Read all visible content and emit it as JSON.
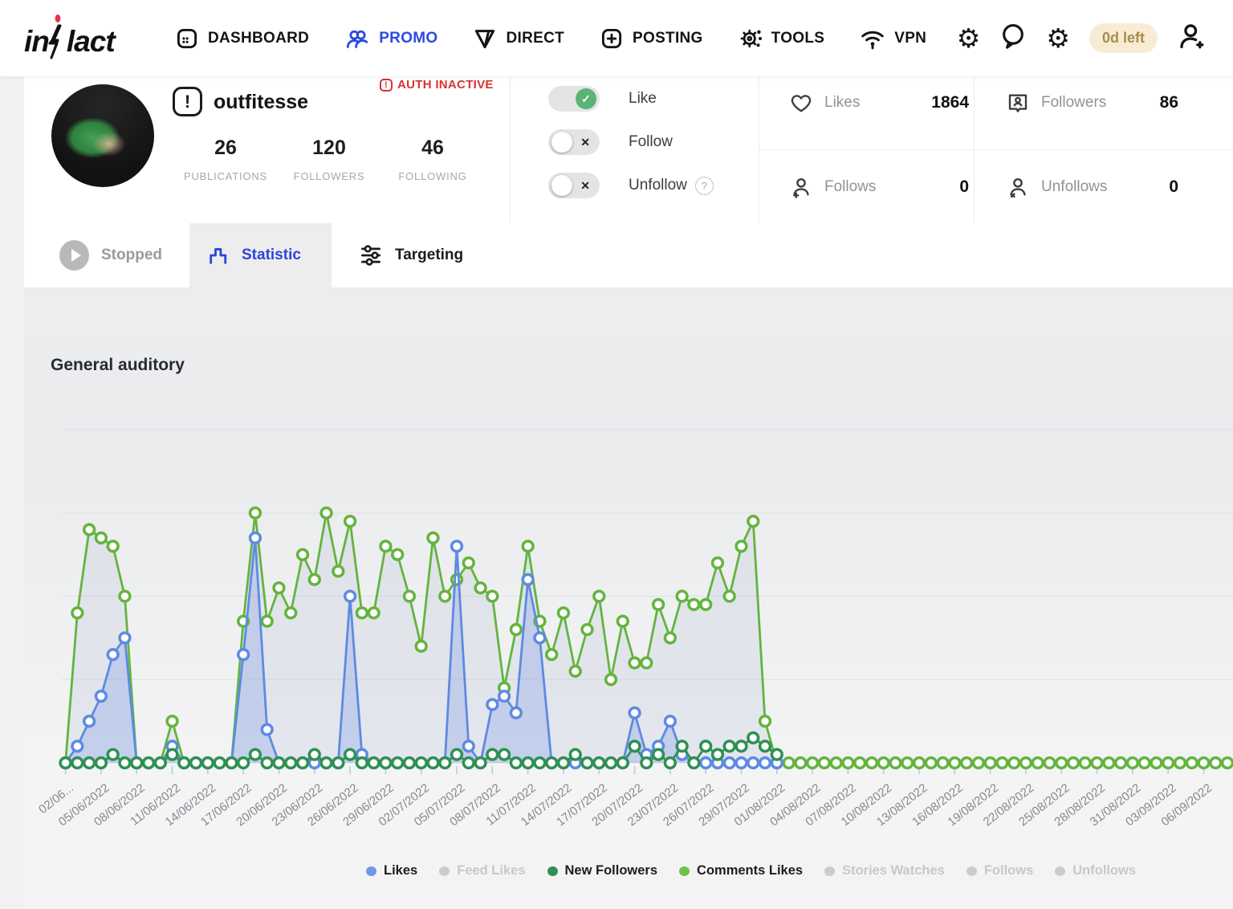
{
  "header": {
    "brand": "inflact",
    "brand_left": "in",
    "brand_right": "lact",
    "nav": [
      {
        "label": "DASHBOARD",
        "icon": "grid-icon",
        "active": false
      },
      {
        "label": "PROMO",
        "icon": "users-icon",
        "active": true
      },
      {
        "label": "DIRECT",
        "icon": "send-icon",
        "active": false
      },
      {
        "label": "POSTING",
        "icon": "plus-square-icon",
        "active": false
      },
      {
        "label": "TOOLS",
        "icon": "gear-nodes-icon",
        "active": false
      },
      {
        "label": "VPN",
        "icon": "wifi-icon",
        "active": false
      }
    ],
    "trial_badge": "0d left",
    "right_icons": [
      "settings-gear-icon",
      "chat-icon",
      "gear-play-icon",
      "add-user-icon"
    ]
  },
  "profile": {
    "username": "outfitesse",
    "auth_status": "AUTH INACTIVE",
    "stats": [
      {
        "value": "26",
        "label": "PUBLICATIONS"
      },
      {
        "value": "120",
        "label": "FOLLOWERS"
      },
      {
        "value": "46",
        "label": "FOLLOWING"
      }
    ]
  },
  "actions": {
    "toggles": [
      {
        "label": "Like",
        "state": "on"
      },
      {
        "label": "Follow",
        "state": "off"
      },
      {
        "label": "Unfollow",
        "state": "off",
        "help": "?"
      }
    ]
  },
  "counters": [
    {
      "icon": "heart-icon",
      "label": "Likes",
      "value": "1864"
    },
    {
      "icon": "follower-badge-icon",
      "label": "Followers",
      "value": "86"
    },
    {
      "icon": "user-plus-icon",
      "label": "Follows",
      "value": "0"
    },
    {
      "icon": "user-x-icon",
      "label": "Unfollows",
      "value": "0"
    }
  ],
  "tabs": [
    {
      "label": "Stopped",
      "icon": "play-circle-icon",
      "active": false
    },
    {
      "label": "Statistic",
      "icon": "bar-chart-icon",
      "active": true
    },
    {
      "label": "Targeting",
      "icon": "sliders-icon",
      "active": false
    }
  ],
  "section_title": "General auditory",
  "chart_data": {
    "type": "line",
    "grid": "horizontal",
    "ylim": [
      0,
      40
    ],
    "y_axis_labels": "none",
    "tick_every": 3,
    "x_tick_labels": [
      "02/06...",
      "05/06/2022",
      "08/06/2022",
      "11/06/2022",
      "14/06/2022",
      "17/06/2022",
      "20/06/2022",
      "23/06/2022",
      "26/06/2022",
      "29/06/2022",
      "02/07/2022",
      "05/07/2022",
      "08/07/2022",
      "11/07/2022",
      "14/07/2022",
      "17/07/2022",
      "20/07/2022",
      "23/07/2022",
      "26/07/2022",
      "29/07/2022",
      "01/08/2022",
      "04/08/2022",
      "07/08/2022",
      "10/08/2022",
      "13/08/2022",
      "16/08/2022",
      "19/08/2022",
      "22/08/2022",
      "25/08/2022",
      "28/08/2022",
      "31/08/2022",
      "03/09/2022",
      "06/09/2022"
    ],
    "series": [
      {
        "name": "Comments Likes",
        "color": "#63b43f",
        "fill": "rgba(130,150,195,0.13)",
        "values": [
          0,
          18,
          28,
          27,
          26,
          20,
          0,
          0,
          0,
          5,
          0,
          0,
          0,
          0,
          0,
          17,
          30,
          17,
          21,
          18,
          25,
          22,
          30,
          23,
          29,
          18,
          18,
          26,
          25,
          20,
          14,
          27,
          20,
          22,
          24,
          21,
          20,
          9,
          16,
          26,
          17,
          13,
          18,
          11,
          16,
          20,
          10,
          17,
          12,
          12,
          19,
          15,
          20,
          19,
          19,
          24,
          20,
          26,
          29,
          5,
          0,
          0,
          0,
          0,
          0,
          0,
          0,
          0,
          0,
          0,
          0,
          0,
          0,
          0,
          0,
          0,
          0,
          0,
          0,
          0,
          0,
          0,
          0,
          0,
          0,
          0,
          0,
          0,
          0,
          0,
          0,
          0,
          0,
          0,
          0,
          0,
          0,
          0,
          0
        ]
      },
      {
        "name": "Likes",
        "color": "#5e8ae2",
        "fill": "rgba(110,145,230,0.27)",
        "values": [
          0,
          2,
          5,
          8,
          13,
          15,
          0,
          0,
          0,
          2,
          0,
          0,
          0,
          0,
          0,
          13,
          27,
          4,
          0,
          0,
          0,
          0,
          0,
          0,
          20,
          1,
          0,
          0,
          0,
          0,
          0,
          0,
          0,
          26,
          2,
          0,
          7,
          8,
          6,
          22,
          15,
          0,
          0,
          0,
          0,
          0,
          0,
          0,
          6,
          1,
          2,
          5,
          1,
          0,
          0,
          0,
          0,
          0,
          0,
          0,
          0,
          null,
          null,
          null,
          null,
          null,
          null,
          null,
          null,
          null,
          null,
          null,
          null,
          null,
          null,
          null,
          null,
          null,
          null,
          null,
          null,
          null,
          null,
          null,
          null,
          null,
          null,
          null,
          null,
          null,
          null,
          null,
          null,
          null,
          null,
          null,
          null,
          null,
          null
        ]
      },
      {
        "name": "New Followers",
        "color": "#2f9054",
        "fill": null,
        "values": [
          0,
          0,
          0,
          0,
          1,
          0,
          0,
          0,
          0,
          1,
          0,
          0,
          0,
          0,
          0,
          0,
          1,
          0,
          0,
          0,
          0,
          1,
          0,
          0,
          1,
          0,
          0,
          0,
          0,
          0,
          0,
          0,
          0,
          1,
          0,
          0,
          1,
          1,
          0,
          0,
          0,
          0,
          0,
          1,
          0,
          0,
          0,
          0,
          2,
          0,
          1,
          0,
          2,
          0,
          2,
          1,
          2,
          2,
          3,
          2,
          1,
          null,
          null,
          null,
          null,
          null,
          null,
          null,
          null,
          null,
          null,
          null,
          null,
          null,
          null,
          null,
          null,
          null,
          null,
          null,
          null,
          null,
          null,
          null,
          null,
          null,
          null,
          null,
          null,
          null,
          null,
          null,
          null,
          null,
          null,
          null,
          null,
          null,
          null
        ]
      }
    ],
    "legend": [
      {
        "label": "Likes",
        "color": "#6f97ea",
        "enabled": true
      },
      {
        "label": "Feed Likes",
        "color": "#cccccc",
        "enabled": false
      },
      {
        "label": "New Followers",
        "color": "#2f9054",
        "enabled": true
      },
      {
        "label": "Comments Likes",
        "color": "#6cc24a",
        "enabled": true
      },
      {
        "label": "Stories Watches",
        "color": "#cccccc",
        "enabled": false
      },
      {
        "label": "Follows",
        "color": "#cccccc",
        "enabled": false
      },
      {
        "label": "Unfollows",
        "color": "#cccccc",
        "enabled": false
      }
    ]
  }
}
